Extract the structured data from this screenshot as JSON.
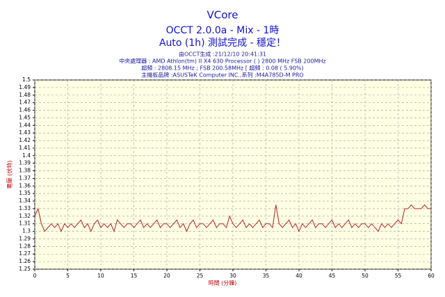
{
  "chart_data": {
    "type": "line",
    "title": "VCore",
    "subtitle": [
      "OCCT 2.0.0a - Mix - 1時",
      "Auto (1h) 測試完成 - 穩定！"
    ],
    "info": [
      "由OCCT生成 :21/12/10 20:41:31",
      "中央處理器 : AMD Athlon(tm) II X4 630 Processor (  ) 2800 MHz FSB 200MHz",
      "超頻 : 2808.15 MHz ; FSB 200.58MHz [ 超頻 : 0.08 ( 5.90%)",
      "主機板品牌 :ASUSTeK Computer INC.,系列 :M4A785D-M PRO"
    ],
    "xlabel": "時間 (分鐘)",
    "ylabel": "電壓 (伏特)",
    "color": "#b22222",
    "x": [
      0,
      0.5,
      1,
      1.5,
      2,
      2.5,
      3,
      3.5,
      4,
      4.5,
      5,
      5.5,
      6,
      6.5,
      7,
      7.5,
      8,
      8.5,
      9,
      9.5,
      10,
      10.5,
      11,
      11.5,
      12,
      12.5,
      13,
      13.5,
      14,
      14.5,
      15,
      15.5,
      16,
      16.5,
      17,
      17.5,
      18,
      18.5,
      19,
      19.5,
      20,
      20.5,
      21,
      21.5,
      22,
      22.5,
      23,
      23.5,
      24,
      24.5,
      25,
      25.5,
      26,
      26.5,
      27,
      27.5,
      28,
      28.5,
      29,
      29.5,
      30,
      30.5,
      31,
      31.5,
      32,
      32.5,
      33,
      33.5,
      34,
      34.5,
      35,
      35.5,
      36,
      36.5,
      37,
      37.5,
      38,
      38.5,
      39,
      39.5,
      40,
      40.5,
      41,
      41.5,
      42,
      42.5,
      43,
      43.5,
      44,
      44.5,
      45,
      45.5,
      46,
      46.5,
      47,
      47.5,
      48,
      48.5,
      49,
      49.5,
      50,
      50.5,
      51,
      51.5,
      52,
      52.5,
      53,
      53.5,
      54,
      54.5,
      55,
      55.5,
      56,
      56.5,
      57,
      57.5,
      58,
      58.5,
      59,
      59.5,
      60
    ],
    "values": [
      1.32,
      1.33,
      1.31,
      1.3,
      1.305,
      1.31,
      1.305,
      1.31,
      1.3,
      1.31,
      1.305,
      1.31,
      1.305,
      1.31,
      1.315,
      1.305,
      1.31,
      1.3,
      1.31,
      1.315,
      1.305,
      1.31,
      1.305,
      1.31,
      1.3,
      1.315,
      1.31,
      1.305,
      1.31,
      1.31,
      1.305,
      1.31,
      1.315,
      1.305,
      1.31,
      1.305,
      1.31,
      1.315,
      1.305,
      1.31,
      1.31,
      1.305,
      1.31,
      1.315,
      1.305,
      1.31,
      1.3,
      1.31,
      1.315,
      1.305,
      1.31,
      1.31,
      1.305,
      1.31,
      1.315,
      1.305,
      1.31,
      1.31,
      1.305,
      1.32,
      1.31,
      1.305,
      1.31,
      1.315,
      1.305,
      1.31,
      1.305,
      1.31,
      1.315,
      1.305,
      1.31,
      1.31,
      1.305,
      1.335,
      1.31,
      1.305,
      1.31,
      1.315,
      1.305,
      1.31,
      1.3,
      1.31,
      1.305,
      1.31,
      1.315,
      1.305,
      1.31,
      1.31,
      1.305,
      1.31,
      1.315,
      1.305,
      1.31,
      1.305,
      1.31,
      1.315,
      1.305,
      1.31,
      1.305,
      1.31,
      1.31,
      1.305,
      1.31,
      1.305,
      1.3,
      1.31,
      1.305,
      1.31,
      1.305,
      1.31,
      1.315,
      1.31,
      1.33,
      1.33,
      1.335,
      1.33,
      1.33,
      1.33,
      1.335,
      1.33,
      1.33
    ],
    "xlim": [
      0,
      60
    ],
    "xticks": [
      0,
      5,
      10,
      15,
      20,
      25,
      30,
      35,
      40,
      45,
      50,
      55,
      60
    ],
    "ylim": [
      1.25,
      1.5
    ],
    "yticks": [
      1.25,
      1.26,
      1.27,
      1.28,
      1.29,
      1.3,
      1.31,
      1.32,
      1.33,
      1.34,
      1.35,
      1.36,
      1.37,
      1.38,
      1.39,
      1.4,
      1.41,
      1.42,
      1.43,
      1.44,
      1.45,
      1.46,
      1.47,
      1.48,
      1.49,
      1.5
    ],
    "grid": true
  }
}
